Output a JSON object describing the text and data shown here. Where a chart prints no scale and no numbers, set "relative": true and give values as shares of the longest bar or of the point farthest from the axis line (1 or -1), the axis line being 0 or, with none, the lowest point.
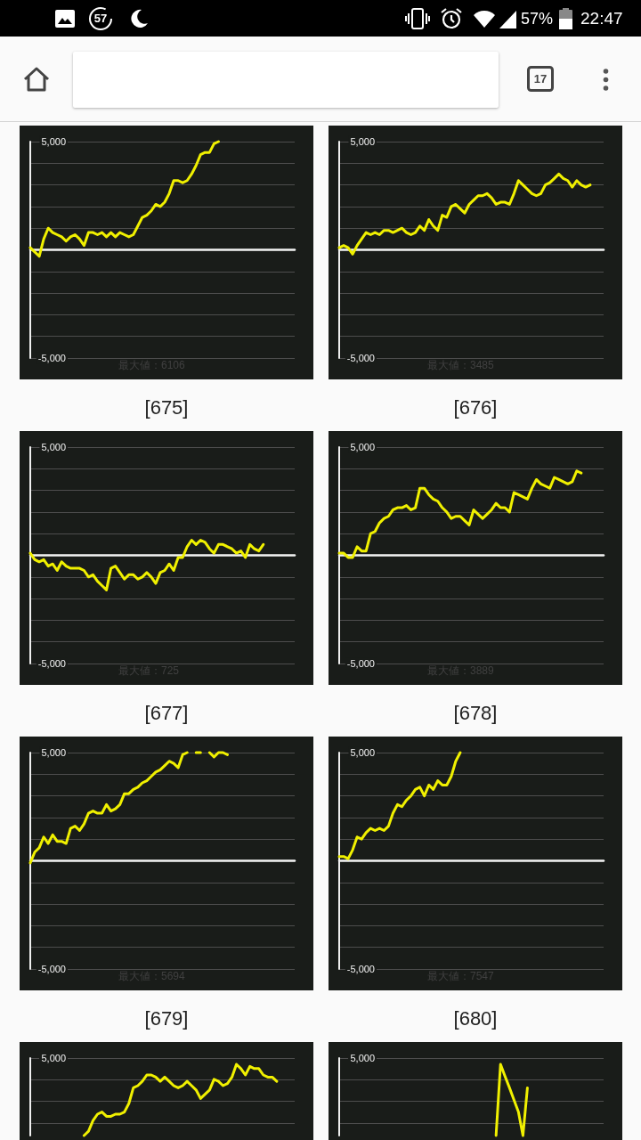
{
  "chart_data": [
    {
      "type": "other",
      "annotations": [
        "57",
        "57%",
        "22:47",
        "17"
      ]
    },
    {
      "type": "line",
      "title": "[675]",
      "annotations": [
        "最大値：6106"
      ],
      "categories": [
        null,
        null,
        null,
        null,
        null,
        null,
        null,
        null,
        null,
        null,
        null,
        null,
        null,
        null,
        null,
        null,
        null,
        null,
        null,
        null,
        null,
        null,
        null,
        null,
        null,
        null,
        null,
        null,
        null,
        null,
        null,
        null,
        null,
        null,
        null,
        null,
        null,
        null,
        null,
        null,
        null,
        null,
        null,
        null,
        null,
        null,
        null,
        null,
        null,
        null,
        null,
        null,
        null,
        null,
        null,
        null,
        null,
        null,
        null,
        null
      ],
      "values": [
        100,
        -100,
        -300,
        500,
        1000,
        800,
        700,
        600,
        400,
        600,
        700,
        500,
        200,
        800,
        800,
        700,
        800,
        600,
        800,
        600,
        800,
        700,
        600,
        700,
        1100,
        1500,
        1600,
        1800,
        2100,
        2000,
        2200,
        2600,
        3200,
        3200,
        3100,
        3200,
        3500,
        3900,
        4400,
        4500,
        4500,
        4900,
        5000,
        null,
        null,
        null,
        null,
        null,
        null,
        null,
        null,
        null,
        null,
        null,
        null,
        null,
        null,
        null,
        null,
        null
      ],
      "color": "#f0f000",
      "ylim": [
        -5000,
        5000
      ],
      "yticks": [
        {
          "value": -5000,
          "label": "-5,000"
        },
        {
          "value": -4000,
          "label": null
        },
        {
          "value": -3000,
          "label": null
        },
        {
          "value": -2000,
          "label": null
        },
        {
          "value": -1000,
          "label": null
        },
        {
          "value": 0,
          "label": null
        },
        {
          "value": 1000,
          "label": null
        },
        {
          "value": 2000,
          "label": null
        },
        {
          "value": 3000,
          "label": null
        },
        {
          "value": 4000,
          "label": null
        },
        {
          "value": 5000,
          "label": "5,000"
        }
      ],
      "grid": "y",
      "tick_labels": "y",
      "marker": "none"
    },
    {
      "type": "line",
      "title": "[676]",
      "annotations": [
        "最大値：3485"
      ],
      "categories": [
        null,
        null,
        null,
        null,
        null,
        null,
        null,
        null,
        null,
        null,
        null,
        null,
        null,
        null,
        null,
        null,
        null,
        null,
        null,
        null,
        null,
        null,
        null,
        null,
        null,
        null,
        null,
        null,
        null,
        null,
        null,
        null,
        null,
        null,
        null,
        null,
        null,
        null,
        null,
        null,
        null,
        null,
        null,
        null,
        null,
        null,
        null,
        null,
        null,
        null,
        null,
        null,
        null,
        null,
        null,
        null,
        null,
        null,
        null,
        null
      ],
      "values": [
        100,
        200,
        100,
        -200,
        200,
        500,
        800,
        700,
        800,
        700,
        900,
        900,
        800,
        900,
        1000,
        800,
        700,
        800,
        1100,
        900,
        1400,
        1100,
        900,
        1600,
        1500,
        2000,
        2100,
        1900,
        1700,
        2100,
        2300,
        2500,
        2500,
        2600,
        2400,
        2100,
        2200,
        2200,
        2100,
        2600,
        3200,
        3000,
        2800,
        2600,
        2500,
        2600,
        3000,
        3100,
        3300,
        3500,
        3300,
        3200,
        2900,
        3200,
        3000,
        2900,
        3000,
        null,
        null,
        null
      ],
      "color": "#f0f000",
      "ylim": [
        -5000,
        5000
      ],
      "yticks": [
        {
          "value": -5000,
          "label": "-5,000"
        },
        {
          "value": -4000,
          "label": null
        },
        {
          "value": -3000,
          "label": null
        },
        {
          "value": -2000,
          "label": null
        },
        {
          "value": -1000,
          "label": null
        },
        {
          "value": 0,
          "label": null
        },
        {
          "value": 1000,
          "label": null
        },
        {
          "value": 2000,
          "label": null
        },
        {
          "value": 3000,
          "label": null
        },
        {
          "value": 4000,
          "label": null
        },
        {
          "value": 5000,
          "label": "5,000"
        }
      ],
      "grid": "y",
      "tick_labels": "y",
      "marker": "none"
    },
    {
      "type": "line",
      "title": "[677]",
      "annotations": [
        "最大値：725"
      ],
      "categories": [
        null,
        null,
        null,
        null,
        null,
        null,
        null,
        null,
        null,
        null,
        null,
        null,
        null,
        null,
        null,
        null,
        null,
        null,
        null,
        null,
        null,
        null,
        null,
        null,
        null,
        null,
        null,
        null,
        null,
        null,
        null,
        null,
        null,
        null,
        null,
        null,
        null,
        null,
        null,
        null,
        null,
        null,
        null,
        null,
        null,
        null,
        null,
        null,
        null,
        null,
        null,
        null,
        null,
        null,
        null,
        null,
        null,
        null,
        null,
        null
      ],
      "values": [
        100,
        -200,
        -300,
        -200,
        -500,
        -400,
        -700,
        -300,
        -500,
        -600,
        -600,
        -600,
        -700,
        -1000,
        -900,
        -1200,
        -1400,
        -1600,
        -600,
        -500,
        -800,
        -1100,
        -900,
        -900,
        -1100,
        -1000,
        -800,
        -1000,
        -1300,
        -800,
        -700,
        -400,
        -700,
        -100,
        -100,
        400,
        700,
        500,
        700,
        600,
        300,
        100,
        500,
        500,
        400,
        300,
        100,
        200,
        -100,
        500,
        300,
        200,
        500,
        null,
        null,
        null,
        null,
        null,
        null,
        null
      ],
      "color": "#f0f000",
      "ylim": [
        -5000,
        5000
      ],
      "yticks": [
        {
          "value": -5000,
          "label": "-5,000"
        },
        {
          "value": -4000,
          "label": null
        },
        {
          "value": -3000,
          "label": null
        },
        {
          "value": -2000,
          "label": null
        },
        {
          "value": -1000,
          "label": null
        },
        {
          "value": 0,
          "label": null
        },
        {
          "value": 1000,
          "label": null
        },
        {
          "value": 2000,
          "label": null
        },
        {
          "value": 3000,
          "label": null
        },
        {
          "value": 4000,
          "label": null
        },
        {
          "value": 5000,
          "label": "5,000"
        }
      ],
      "grid": "y",
      "tick_labels": "y",
      "marker": "none"
    },
    {
      "type": "line",
      "title": "[678]",
      "annotations": [
        "最大値：3889"
      ],
      "categories": [
        null,
        null,
        null,
        null,
        null,
        null,
        null,
        null,
        null,
        null,
        null,
        null,
        null,
        null,
        null,
        null,
        null,
        null,
        null,
        null,
        null,
        null,
        null,
        null,
        null,
        null,
        null,
        null,
        null,
        null,
        null,
        null,
        null,
        null,
        null,
        null,
        null,
        null,
        null,
        null,
        null,
        null,
        null,
        null,
        null,
        null,
        null,
        null,
        null,
        null,
        null,
        null,
        null,
        null,
        null,
        null,
        null,
        null,
        null,
        null
      ],
      "values": [
        100,
        100,
        -100,
        -100,
        400,
        200,
        200,
        1000,
        1100,
        1500,
        1700,
        1800,
        2100,
        2200,
        2200,
        2300,
        2100,
        2200,
        3100,
        3100,
        2800,
        2600,
        2500,
        2200,
        2000,
        1700,
        1800,
        1800,
        1600,
        1400,
        2100,
        1900,
        1700,
        1900,
        2100,
        2400,
        2200,
        2200,
        2000,
        2900,
        2800,
        2700,
        2600,
        3100,
        3500,
        3300,
        3200,
        3100,
        3600,
        3500,
        3400,
        3300,
        3400,
        3900,
        3800,
        null,
        null,
        null,
        null,
        null
      ],
      "color": "#f0f000",
      "ylim": [
        -5000,
        5000
      ],
      "yticks": [
        {
          "value": -5000,
          "label": "-5,000"
        },
        {
          "value": -4000,
          "label": null
        },
        {
          "value": -3000,
          "label": null
        },
        {
          "value": -2000,
          "label": null
        },
        {
          "value": -1000,
          "label": null
        },
        {
          "value": 0,
          "label": null
        },
        {
          "value": 1000,
          "label": null
        },
        {
          "value": 2000,
          "label": null
        },
        {
          "value": 3000,
          "label": null
        },
        {
          "value": 4000,
          "label": null
        },
        {
          "value": 5000,
          "label": "5,000"
        }
      ],
      "grid": "y",
      "tick_labels": "y",
      "marker": "none"
    },
    {
      "type": "line",
      "title": "[679]",
      "annotations": [
        "最大値：5694"
      ],
      "categories": [
        null,
        null,
        null,
        null,
        null,
        null,
        null,
        null,
        null,
        null,
        null,
        null,
        null,
        null,
        null,
        null,
        null,
        null,
        null,
        null,
        null,
        null,
        null,
        null,
        null,
        null,
        null,
        null,
        null,
        null,
        null,
        null,
        null,
        null,
        null,
        null,
        null,
        null,
        null,
        null,
        null,
        null,
        null,
        null,
        null,
        null,
        null,
        null,
        null,
        null,
        null,
        null,
        null,
        null,
        null,
        null,
        null,
        null,
        null,
        null
      ],
      "values": [
        -100,
        400,
        600,
        1100,
        800,
        1200,
        900,
        900,
        800,
        1500,
        1600,
        1400,
        1700,
        2200,
        2300,
        2200,
        2200,
        2600,
        2300,
        2400,
        2600,
        3100,
        3100,
        3300,
        3400,
        3600,
        3700,
        3900,
        4100,
        4200,
        4400,
        4600,
        4500,
        4300,
        4900,
        5000,
        null,
        5000,
        5000,
        null,
        5000,
        4800,
        5000,
        5000,
        4900,
        null,
        null,
        null,
        null,
        null,
        null,
        null,
        null,
        null,
        null,
        null,
        null,
        null,
        null,
        null
      ],
      "color": "#f0f000",
      "ylim": [
        -5000,
        5000
      ],
      "yticks": [
        {
          "value": -5000,
          "label": "-5,000"
        },
        {
          "value": -4000,
          "label": null
        },
        {
          "value": -3000,
          "label": null
        },
        {
          "value": -2000,
          "label": null
        },
        {
          "value": -1000,
          "label": null
        },
        {
          "value": 0,
          "label": null
        },
        {
          "value": 1000,
          "label": null
        },
        {
          "value": 2000,
          "label": null
        },
        {
          "value": 3000,
          "label": null
        },
        {
          "value": 4000,
          "label": null
        },
        {
          "value": 5000,
          "label": "5,000"
        }
      ],
      "grid": "y",
      "tick_labels": "y",
      "marker": "none"
    },
    {
      "type": "line",
      "title": "[680]",
      "annotations": [
        "最大値：7547"
      ],
      "categories": [
        null,
        null,
        null,
        null,
        null,
        null,
        null,
        null,
        null,
        null,
        null,
        null,
        null,
        null,
        null,
        null,
        null,
        null,
        null,
        null,
        null,
        null,
        null,
        null,
        null,
        null,
        null,
        null,
        null,
        null,
        null,
        null,
        null,
        null,
        null,
        null,
        null,
        null,
        null,
        null,
        null,
        null,
        null,
        null,
        null,
        null,
        null,
        null,
        null,
        null,
        null,
        null,
        null,
        null,
        null,
        null,
        null,
        null,
        null,
        null
      ],
      "values": [
        200,
        200,
        100,
        500,
        1100,
        1000,
        1300,
        1500,
        1400,
        1500,
        1400,
        1600,
        2200,
        2600,
        2500,
        2800,
        3000,
        3300,
        3400,
        3000,
        3500,
        3300,
        3700,
        3500,
        3500,
        3900,
        4600,
        5000,
        null,
        null,
        null,
        null,
        null,
        null,
        null,
        null,
        null,
        null,
        null,
        null,
        null,
        null,
        null,
        null,
        null,
        null,
        null,
        null,
        null,
        null,
        null,
        null,
        null,
        null,
        null,
        null,
        null,
        null,
        null,
        null
      ],
      "color": "#f0f000",
      "ylim": [
        -5000,
        5000
      ],
      "yticks": [
        {
          "value": -5000,
          "label": "-5,000"
        },
        {
          "value": -4000,
          "label": null
        },
        {
          "value": -3000,
          "label": null
        },
        {
          "value": -2000,
          "label": null
        },
        {
          "value": -1000,
          "label": null
        },
        {
          "value": 0,
          "label": null
        },
        {
          "value": 1000,
          "label": null
        },
        {
          "value": 2000,
          "label": null
        },
        {
          "value": 3000,
          "label": null
        },
        {
          "value": 4000,
          "label": null
        },
        {
          "value": 5000,
          "label": "5,000"
        }
      ],
      "grid": "y",
      "tick_labels": "y",
      "marker": "none"
    },
    {
      "type": "line",
      "relative": true,
      "annotations": [
        "5,000"
      ],
      "categories": [
        null,
        null,
        null,
        null,
        null,
        null,
        null,
        null,
        null,
        null,
        null,
        null,
        null,
        null,
        null,
        null,
        null,
        null,
        null,
        null,
        null,
        null,
        null,
        null,
        null,
        null,
        null,
        null,
        null,
        null,
        null,
        null,
        null,
        null,
        null,
        null,
        null,
        null,
        null,
        null,
        null,
        null,
        null,
        null,
        null,
        null,
        null,
        null,
        null,
        null,
        null,
        null,
        null,
        null,
        null,
        null,
        null,
        null,
        null,
        null
      ],
      "values": [
        null,
        null,
        null,
        null,
        null,
        null,
        null,
        null,
        null,
        null,
        null,
        null,
        0,
        0.06,
        0.21,
        0.3,
        0.33,
        0.27,
        0.27,
        0.3,
        0.3,
        0.33,
        0.45,
        0.67,
        0.7,
        0.76,
        0.85,
        0.85,
        0.82,
        0.76,
        0.82,
        0.76,
        0.7,
        0.67,
        0.7,
        0.76,
        0.7,
        0.64,
        0.52,
        0.58,
        0.64,
        0.79,
        0.76,
        0.7,
        0.73,
        0.82,
        1,
        0.94,
        0.85,
        0.97,
        0.94,
        0.94,
        0.85,
        0.82,
        0.82,
        0.76,
        null,
        null,
        null,
        null
      ],
      "color": "#f0f000",
      "grid": "y",
      "tick_labels": "y",
      "marker": "none"
    },
    {
      "type": "line",
      "relative": true,
      "annotations": [
        "5,000"
      ],
      "categories": [
        null,
        null,
        null,
        null,
        null,
        null,
        null,
        null,
        null,
        null,
        null,
        null,
        null,
        null,
        null,
        null,
        null,
        null,
        null,
        null,
        null,
        null,
        null,
        null,
        null,
        null,
        null,
        null,
        null,
        null,
        null,
        null,
        null,
        null,
        null,
        null,
        null,
        null,
        null,
        null,
        null,
        null,
        null,
        null,
        null,
        null,
        null,
        null,
        null,
        null,
        null,
        null,
        null,
        null,
        null,
        null,
        null,
        null,
        null,
        null
      ],
      "values": [
        null,
        null,
        null,
        null,
        null,
        null,
        null,
        null,
        null,
        null,
        null,
        null,
        null,
        null,
        null,
        null,
        null,
        null,
        null,
        null,
        null,
        null,
        null,
        null,
        null,
        null,
        null,
        null,
        null,
        null,
        null,
        null,
        null,
        null,
        null,
        0,
        1,
        0.83,
        0.67,
        0.5,
        0.33,
        0,
        0.67,
        null,
        null,
        null,
        null,
        null,
        null,
        null,
        null,
        null,
        null,
        null,
        null,
        null,
        null,
        null,
        null,
        null
      ],
      "color": "#f0f000",
      "grid": "y",
      "tick_labels": "y",
      "marker": "none"
    }
  ]
}
